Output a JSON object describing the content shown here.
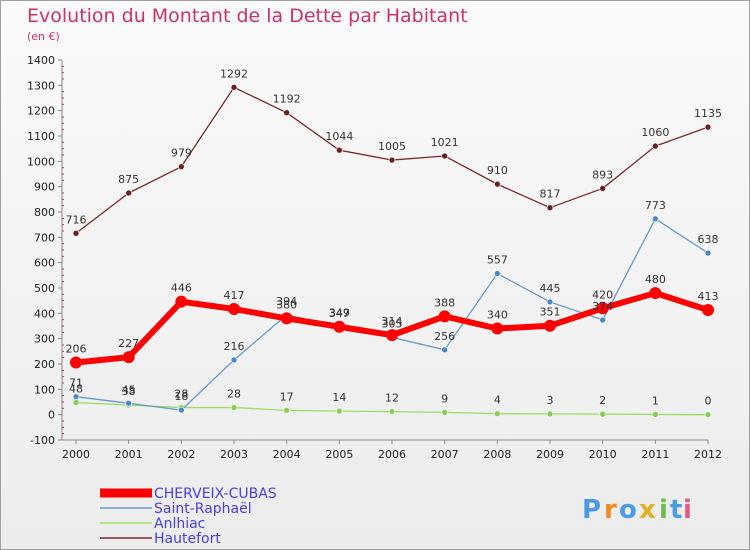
{
  "chart_data": {
    "type": "line",
    "title": "Evolution du Montant de la Dette par Habitant",
    "subtitle": "(en €)",
    "x": [
      "2000",
      "2001",
      "2002",
      "2003",
      "2004",
      "2005",
      "2006",
      "2007",
      "2008",
      "2009",
      "2010",
      "2011",
      "2012"
    ],
    "ylim": [
      -100,
      1400
    ],
    "yticks": [
      -100,
      0,
      100,
      200,
      300,
      400,
      500,
      600,
      700,
      800,
      900,
      1000,
      1100,
      1200,
      1300,
      1400
    ],
    "grid": false,
    "legend_position": "bottom-left",
    "series": [
      {
        "name": "Hautefort",
        "color": "#7a2a2a",
        "values": [
          716,
          875,
          979,
          1292,
          1192,
          1044,
          1005,
          1021,
          910,
          817,
          893,
          1060,
          1135
        ]
      },
      {
        "name": "Anlhiac",
        "color": "#99dd66",
        "values": [
          48,
          38,
          28,
          28,
          17,
          14,
          12,
          9,
          4,
          3,
          2,
          1,
          0
        ]
      },
      {
        "name": "Saint-Raphaël",
        "color": "#6699cc",
        "values": [
          71,
          45,
          18,
          216,
          394,
          349,
          305,
          256,
          557,
          445,
          374,
          773,
          638
        ]
      },
      {
        "name": "CHERVEIX-CUBAS",
        "color": "#ff0000",
        "values": [
          206,
          227,
          446,
          417,
          380,
          347,
          314,
          388,
          340,
          351,
          420,
          480,
          413
        ]
      }
    ]
  },
  "logo": {
    "text": "Proxiti",
    "letters": [
      "P",
      "r",
      "o",
      "x",
      "i",
      "t",
      "i"
    ],
    "colors": [
      "#4a9be0",
      "#f08a24",
      "#4a9be0",
      "#e0b024",
      "#6ac04a",
      "#4a9be0",
      "#e05a8a"
    ]
  }
}
